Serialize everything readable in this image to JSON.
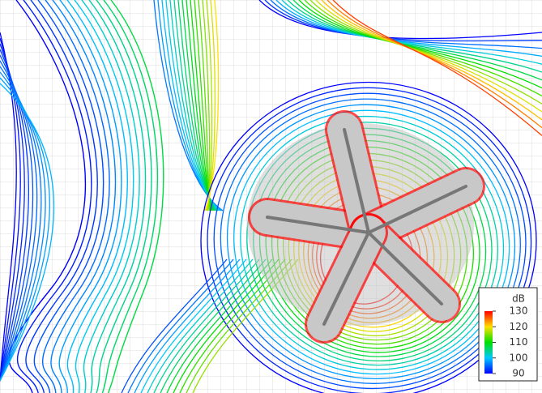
{
  "chart_data": {
    "type": "contour",
    "colorbar": {
      "label": "dB",
      "range": [
        90,
        130
      ],
      "ticks": [
        130,
        120,
        110,
        100,
        90
      ],
      "colors": [
        "#0000ff",
        "#00c8ff",
        "#00e000",
        "#ffe000",
        "#ff0000"
      ]
    }
  }
}
